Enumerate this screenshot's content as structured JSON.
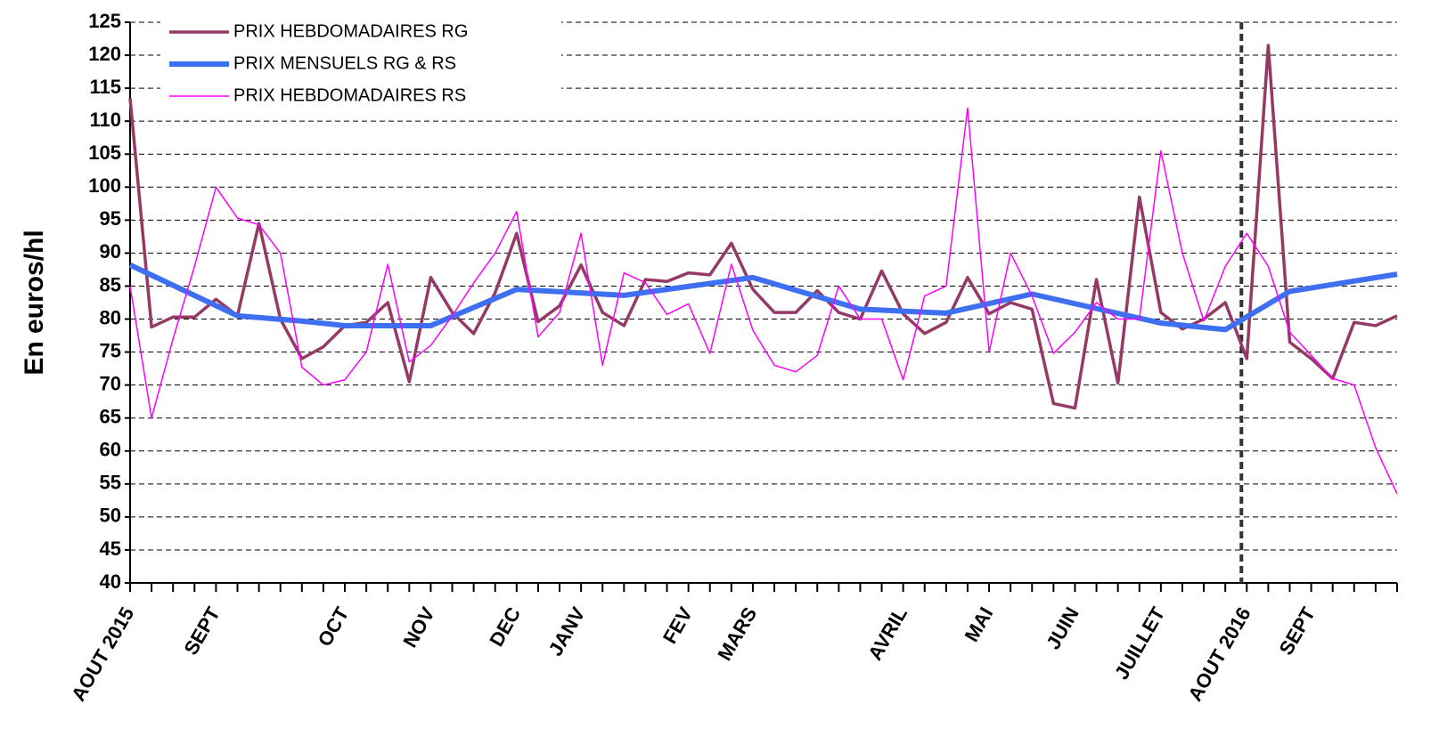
{
  "chart_data": {
    "type": "line",
    "y_label": "En euros/hl",
    "categories": [
      "AOUT 2015",
      null,
      null,
      null,
      "SEPT",
      null,
      null,
      null,
      null,
      null,
      "OCT",
      null,
      null,
      null,
      "NOV",
      null,
      null,
      null,
      "DEC",
      null,
      null,
      "JANV",
      null,
      null,
      null,
      null,
      "FEV",
      null,
      null,
      "MARS",
      null,
      null,
      null,
      null,
      null,
      null,
      "AVRIL",
      null,
      null,
      null,
      "MAI",
      null,
      null,
      null,
      "JUIN",
      null,
      null,
      null,
      "JUILLET",
      null,
      null,
      null,
      "AOUT 2016",
      null,
      null,
      "SEPT",
      null,
      null,
      null,
      null
    ],
    "series": [
      {
        "name": "PRIX HEBDOMADAIRES RG",
        "color": "#953966",
        "width": 3.5,
        "values": [
          113.5,
          78.8,
          80.3,
          80.3,
          83,
          80.5,
          94.5,
          80,
          74,
          75.8,
          79,
          79.5,
          82.5,
          70.5,
          86.3,
          81,
          77.8,
          84,
          93,
          79.6,
          82,
          88.2,
          81,
          79,
          86,
          85.7,
          87,
          86.7,
          91.5,
          84.5,
          81,
          81,
          84.3,
          81,
          80,
          87.3,
          80.8,
          77.8,
          79.5,
          86.3,
          80.8,
          82.5,
          81.5,
          67.2,
          66.5,
          86,
          70.3,
          98.5,
          81,
          78.5,
          80,
          82.5,
          74,
          121.5,
          76.5,
          74,
          71,
          79.5,
          79,
          80.5
        ]
      },
      {
        "name": "PRIX MENSUELS RG & RS",
        "color": "#3d6ff0",
        "width": 6,
        "x": [
          0,
          5,
          8,
          10,
          14,
          18,
          23,
          29,
          34,
          38,
          42,
          48,
          51,
          54,
          59
        ],
        "values": [
          88.2,
          80.5,
          79.7,
          79,
          79,
          84.5,
          83.6,
          86.3,
          81.5,
          80.9,
          83.8,
          79.4,
          78.4,
          84.2,
          86.8
        ]
      },
      {
        "name": "PRIX HEBDOMADAIRES RS",
        "color": "#ff00ff",
        "width": 1.5,
        "values": [
          85,
          65,
          77,
          88,
          100,
          95.3,
          94.3,
          90,
          72.7,
          70,
          70.8,
          75,
          88.3,
          73.5,
          76,
          80.5,
          85.5,
          90,
          96.3,
          77.3,
          81,
          93,
          73,
          87,
          85.5,
          80.7,
          82.3,
          74.8,
          88.3,
          78.3,
          73,
          72,
          74.5,
          85,
          80,
          80,
          70.8,
          83.5,
          85,
          112,
          75,
          90,
          83.5,
          74.8,
          78,
          82.5,
          80,
          80,
          105.5,
          90,
          79.7,
          88,
          93,
          88,
          78,
          74.5,
          71,
          70,
          60.5,
          53.5
        ]
      }
    ],
    "ylim": [
      40,
      125
    ],
    "yticks": [
      40,
      45,
      50,
      55,
      60,
      65,
      70,
      75,
      80,
      85,
      90,
      95,
      100,
      105,
      110,
      115,
      120,
      125
    ],
    "grid": true,
    "legend": "upper left",
    "vline_x": 51.75
  }
}
